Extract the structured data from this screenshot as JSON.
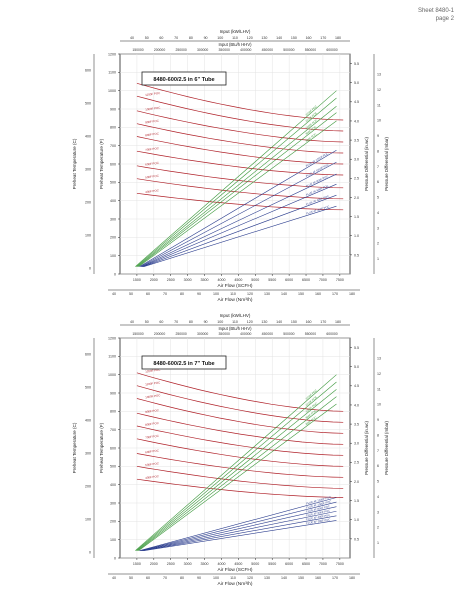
{
  "header": {
    "sheet": "Sheet 8480-1",
    "page": "page 2"
  },
  "colors": {
    "red": "#b0222a",
    "green": "#3f9a3f",
    "blue": "#2d3f8f",
    "axis": "#222222"
  },
  "chart_data": [
    {
      "type": "line",
      "title": "8480-600/2.5 in 6\" Tube",
      "top_axis_1": {
        "label": "Input (kW/LHV)",
        "ticks": [
          40,
          50,
          60,
          70,
          80,
          90,
          100,
          110,
          120,
          130,
          140,
          150,
          160,
          170,
          180
        ]
      },
      "top_axis_2": {
        "label": "Input (Btu/h HHV)",
        "ticks": [
          150000,
          200000,
          250000,
          300000,
          350000,
          400000,
          450000,
          500000,
          550000,
          600000
        ]
      },
      "bottom_axis_1": {
        "label": "Air Flow (SCFH)",
        "ticks": [
          1500,
          2000,
          2500,
          3000,
          3500,
          4000,
          4500,
          5000,
          5500,
          6000,
          6500,
          7000,
          7500
        ]
      },
      "bottom_axis_2": {
        "label": "Air Flow (Nm³/h)",
        "ticks": [
          40,
          50,
          60,
          70,
          80,
          90,
          100,
          110,
          120,
          130,
          140,
          150,
          160,
          170,
          180
        ]
      },
      "left_axis_c": {
        "label": "Preheat Temperature (C)",
        "ticks": [
          0,
          100,
          200,
          300,
          400,
          500,
          600
        ]
      },
      "left_axis_f": {
        "label": "Preheat Temperature (F)",
        "ticks": [
          0,
          100,
          200,
          300,
          400,
          500,
          600,
          700,
          800,
          900,
          1000,
          1100,
          1200
        ]
      },
      "right_axis_inwc": {
        "label": "Pressure Differential (in.wc)",
        "ticks": [
          0.5,
          1.0,
          1.5,
          2.0,
          2.5,
          3.0,
          3.5,
          4.0,
          4.5,
          5.0,
          5.5
        ]
      },
      "right_axis_mbar": {
        "label": "Pressure Differential (mbar)",
        "ticks": [
          1,
          2,
          3,
          4,
          5,
          6,
          7,
          8,
          9,
          10,
          11,
          12,
          13
        ]
      },
      "xlim": [
        1000,
        7800
      ],
      "ylim_f": [
        0,
        1200
      ],
      "temp_curves": [
        {
          "label": "1200F POC",
          "temps": [
            1040,
            840
          ]
        },
        {
          "label": "1100F POC",
          "temps": [
            970,
            780
          ]
        },
        {
          "label": "1000F POC",
          "temps": [
            890,
            720
          ]
        },
        {
          "label": "900F POC",
          "temps": [
            820,
            660
          ]
        },
        {
          "label": "800F POC",
          "temps": [
            750,
            600
          ]
        },
        {
          "label": "700F POC",
          "temps": [
            670,
            540
          ]
        },
        {
          "label": "600F POC",
          "temps": [
            590,
            470
          ]
        },
        {
          "label": "500F POC",
          "temps": [
            520,
            410
          ]
        },
        {
          "label": "400F POC",
          "temps": [
            440,
            350
          ]
        }
      ],
      "pressure_lines": [
        {
          "label": "1200F POC",
          "color": "green",
          "end_f": 1000
        },
        {
          "label": "1100F POC",
          "color": "green",
          "end_f": 960
        },
        {
          "label": "1000F POC",
          "color": "green",
          "end_f": 915
        },
        {
          "label": "900F POC",
          "color": "green",
          "end_f": 880
        },
        {
          "label": "800F POC",
          "color": "green",
          "end_f": 835
        },
        {
          "label": "FLUE 4F 1200F POC",
          "color": "blue",
          "end_f": 675
        },
        {
          "label": "FLUE 4F 1000F POC",
          "color": "blue",
          "end_f": 610
        },
        {
          "label": "FLUE 4F 800F POC",
          "color": "blue",
          "end_f": 545
        },
        {
          "label": "FLUE 4F 600F POC",
          "color": "blue",
          "end_f": 490
        },
        {
          "label": "FLUE 4F 400F POC",
          "color": "blue",
          "end_f": 430
        },
        {
          "label": "FLUE 4F 200F POC",
          "color": "blue",
          "end_f": 370
        }
      ]
    },
    {
      "type": "line",
      "title": "8480-600/2.5 in 7\" Tube",
      "top_axis_1": {
        "label": "Input (kW/LHV)",
        "ticks": [
          40,
          50,
          60,
          70,
          80,
          90,
          100,
          110,
          120,
          130,
          140,
          150,
          160,
          170,
          180
        ]
      },
      "top_axis_2": {
        "label": "Input (Btu/h HHV)",
        "ticks": [
          150000,
          200000,
          250000,
          300000,
          350000,
          400000,
          450000,
          500000,
          550000,
          600000
        ]
      },
      "bottom_axis_1": {
        "label": "Air Flow (SCFH)",
        "ticks": [
          1500,
          2000,
          2500,
          3000,
          3500,
          4000,
          4500,
          5000,
          5500,
          6000,
          6500,
          7000,
          7500
        ]
      },
      "bottom_axis_2": {
        "label": "Air Flow (Nm³/h)",
        "ticks": [
          40,
          50,
          60,
          70,
          80,
          90,
          100,
          110,
          120,
          130,
          140,
          150,
          160,
          170,
          180
        ]
      },
      "left_axis_c": {
        "label": "Preheat Temperature (C)",
        "ticks": [
          0,
          100,
          200,
          300,
          400,
          500,
          600
        ]
      },
      "left_axis_f": {
        "label": "Preheat Temperature (F)",
        "ticks": [
          0,
          100,
          200,
          300,
          400,
          500,
          600,
          700,
          800,
          900,
          1000,
          1100,
          1200
        ]
      },
      "right_axis_inwc": {
        "label": "Pressure Differential (in.wc)",
        "ticks": [
          0.5,
          1.0,
          1.5,
          2.0,
          2.5,
          3.0,
          3.5,
          4.0,
          4.5,
          5.0,
          5.5
        ]
      },
      "right_axis_mbar": {
        "label": "Pressure Differential (mbar)",
        "ticks": [
          1,
          2,
          3,
          4,
          5,
          6,
          7,
          8,
          9,
          10,
          11,
          12,
          13
        ]
      },
      "xlim": [
        1000,
        7800
      ],
      "ylim_f": [
        0,
        1200
      ],
      "temp_curves": [
        {
          "label": "1200F POC",
          "temps": [
            1010,
            800
          ]
        },
        {
          "label": "1100F POC",
          "temps": [
            940,
            740
          ]
        },
        {
          "label": "1000F POC",
          "temps": [
            870,
            680
          ]
        },
        {
          "label": "900F POC",
          "temps": [
            790,
            620
          ]
        },
        {
          "label": "800F POC",
          "temps": [
            720,
            560
          ]
        },
        {
          "label": "700F POC",
          "temps": [
            650,
            500
          ]
        },
        {
          "label": "600F POC",
          "temps": [
            570,
            440
          ]
        },
        {
          "label": "500F POC",
          "temps": [
            500,
            380
          ]
        },
        {
          "label": "400F POC",
          "temps": [
            430,
            330
          ]
        }
      ],
      "pressure_lines": [
        {
          "label": "1200F POC",
          "color": "green",
          "end_f": 1000
        },
        {
          "label": "1100F POC",
          "color": "green",
          "end_f": 960
        },
        {
          "label": "1000F POC",
          "color": "green",
          "end_f": 920
        },
        {
          "label": "900F POC",
          "color": "green",
          "end_f": 880
        },
        {
          "label": "800F POC",
          "color": "green",
          "end_f": 840
        },
        {
          "label": "FLUE 4F 1200F POC",
          "color": "blue",
          "end_f": 330
        },
        {
          "label": "FLUE 4F 1000F POC",
          "color": "blue",
          "end_f": 305
        },
        {
          "label": "FLUE 4F 800F POC",
          "color": "blue",
          "end_f": 280
        },
        {
          "label": "FLUE 4F 600F POC",
          "color": "blue",
          "end_f": 255
        },
        {
          "label": "FLUE 4F 400F POC",
          "color": "blue",
          "end_f": 230
        },
        {
          "label": "FLUE 4F 200F POC",
          "color": "blue",
          "end_f": 205
        }
      ]
    }
  ]
}
